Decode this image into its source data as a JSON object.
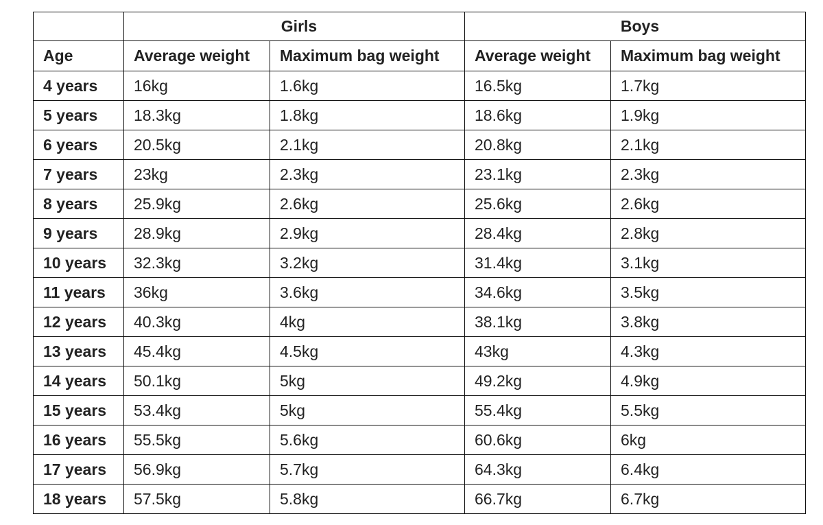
{
  "table": {
    "group_headers": [
      "Girls",
      "Boys"
    ],
    "columns": [
      "Age",
      "Average weight",
      "Maximum bag weight",
      "Average weight",
      "Maximum bag weight"
    ],
    "rows": [
      [
        "4 years",
        "16kg",
        "1.6kg",
        "16.5kg",
        "1.7kg"
      ],
      [
        "5 years",
        "18.3kg",
        "1.8kg",
        "18.6kg",
        "1.9kg"
      ],
      [
        "6 years",
        "20.5kg",
        "2.1kg",
        "20.8kg",
        "2.1kg"
      ],
      [
        "7 years",
        "23kg",
        "2.3kg",
        "23.1kg",
        "2.3kg"
      ],
      [
        "8 years",
        "25.9kg",
        "2.6kg",
        "25.6kg",
        "2.6kg"
      ],
      [
        "9 years",
        "28.9kg",
        "2.9kg",
        "28.4kg",
        "2.8kg"
      ],
      [
        "10 years",
        "32.3kg",
        "3.2kg",
        "31.4kg",
        "3.1kg"
      ],
      [
        "11 years",
        "36kg",
        "3.6kg",
        "34.6kg",
        "3.5kg"
      ],
      [
        "12 years",
        "40.3kg",
        "4kg",
        "38.1kg",
        "3.8kg"
      ],
      [
        "13 years",
        "45.4kg",
        "4.5kg",
        "43kg",
        "4.3kg"
      ],
      [
        "14 years",
        "50.1kg",
        "5kg",
        "49.2kg",
        "4.9kg"
      ],
      [
        "15 years",
        "53.4kg",
        "5kg",
        "55.4kg",
        "5.5kg"
      ],
      [
        "16 years",
        "55.5kg",
        "5.6kg",
        "60.6kg",
        "6kg"
      ],
      [
        "17 years",
        "56.9kg",
        "5.7kg",
        "64.3kg",
        "6.4kg"
      ],
      [
        "18 years",
        "57.5kg",
        "5.8kg",
        "66.7kg",
        "6.7kg"
      ]
    ]
  }
}
